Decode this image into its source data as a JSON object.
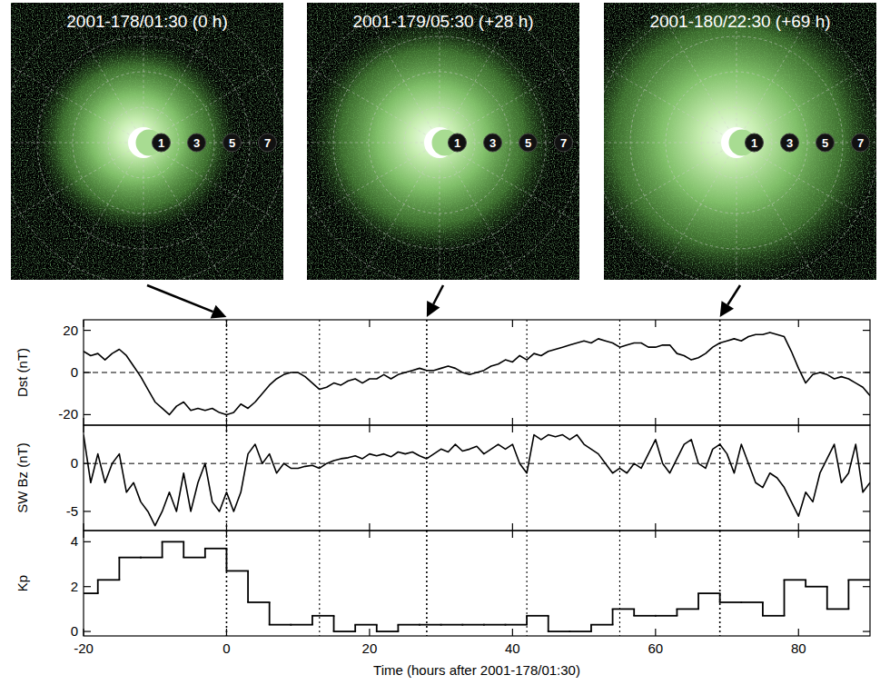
{
  "images": [
    {
      "title": "2001-178/01:30 (0 h)",
      "hours": 0
    },
    {
      "title": "2001-179/05:30 (+28 h)",
      "hours": 28
    },
    {
      "title": "2001-180/22:30 (+69 h)",
      "hours": 69
    }
  ],
  "distance_labels": [
    1,
    3,
    5,
    7
  ],
  "vertical_lines": [
    0,
    13,
    28,
    42,
    55,
    69
  ],
  "chart_data": [
    {
      "type": "line",
      "y_label": "Dst (nT)",
      "x": [
        -20,
        -19,
        -18,
        -17,
        -16,
        -15,
        -14,
        -13,
        -12,
        -11,
        -10,
        -9,
        -8,
        -7,
        -6,
        -5,
        -4,
        -3,
        -2,
        -1,
        0,
        1,
        2,
        3,
        4,
        5,
        6,
        7,
        8,
        9,
        10,
        11,
        12,
        13,
        14,
        15,
        16,
        17,
        18,
        19,
        20,
        21,
        22,
        23,
        24,
        25,
        26,
        27,
        28,
        29,
        30,
        31,
        32,
        33,
        34,
        35,
        36,
        37,
        38,
        39,
        40,
        41,
        42,
        43,
        44,
        45,
        46,
        47,
        48,
        49,
        50,
        51,
        52,
        53,
        54,
        55,
        56,
        57,
        58,
        59,
        60,
        61,
        62,
        63,
        64,
        65,
        66,
        67,
        68,
        69,
        70,
        71,
        72,
        73,
        74,
        75,
        76,
        77,
        78,
        79,
        80,
        81,
        82,
        83,
        84,
        85,
        86,
        87,
        88,
        89,
        90
      ],
      "values": [
        10,
        8,
        9,
        6,
        9,
        11,
        8,
        3,
        -2,
        -8,
        -14,
        -17,
        -20,
        -16,
        -14,
        -18,
        -17,
        -18,
        -17,
        -19,
        -20,
        -19,
        -15,
        -17,
        -14,
        -10,
        -6,
        -3,
        -1,
        0,
        0,
        -2,
        -5,
        -8,
        -7,
        -5,
        -6,
        -4,
        -3,
        -5,
        -3,
        -3,
        -1,
        -3,
        -1,
        0,
        1,
        2,
        1,
        1,
        2,
        3,
        2,
        0,
        -1,
        0,
        1,
        3,
        4,
        6,
        5,
        8,
        6,
        9,
        8,
        10,
        11,
        12,
        13,
        14,
        15,
        14,
        16,
        15,
        14,
        12,
        13,
        14,
        14,
        12,
        12,
        13,
        13,
        9,
        8,
        6,
        7,
        9,
        12,
        14,
        15,
        16,
        15,
        17,
        18,
        18,
        19,
        18,
        17,
        10,
        2,
        -5,
        -1,
        0,
        -1,
        -3,
        -2,
        -3,
        -5,
        -7,
        -11
      ],
      "color": "#000000",
      "xlim": [
        -20,
        90
      ],
      "xticks": [
        -20,
        0,
        20,
        40,
        60,
        80
      ],
      "ylim": [
        -25,
        25
      ],
      "yticks": [
        -20,
        0,
        20
      ],
      "tick_labels": "y"
    },
    {
      "type": "line",
      "y_label": "SW Bz (nT)",
      "x": [
        -20,
        -19,
        -18,
        -17,
        -16,
        -15,
        -14,
        -13,
        -12,
        -11,
        -10,
        -9,
        -8,
        -7,
        -6,
        -5,
        -4,
        -3,
        -2,
        -1,
        0,
        1,
        2,
        3,
        4,
        5,
        6,
        7,
        8,
        9,
        10,
        11,
        12,
        13,
        14,
        15,
        16,
        17,
        18,
        19,
        20,
        21,
        22,
        23,
        24,
        25,
        26,
        27,
        28,
        29,
        30,
        31,
        32,
        33,
        34,
        35,
        36,
        37,
        38,
        39,
        40,
        41,
        42,
        43,
        44,
        45,
        46,
        47,
        48,
        49,
        50,
        51,
        52,
        53,
        54,
        55,
        56,
        57,
        58,
        59,
        60,
        61,
        62,
        63,
        64,
        65,
        66,
        67,
        68,
        69,
        70,
        71,
        72,
        73,
        74,
        75,
        76,
        77,
        78,
        79,
        80,
        81,
        82,
        83,
        84,
        85,
        86,
        87,
        88,
        89,
        90
      ],
      "values": [
        3,
        -2,
        1,
        -2,
        0,
        1,
        -3,
        -2,
        -4,
        -5,
        -6.5,
        -5,
        -3,
        -5,
        -1,
        -5,
        -2,
        0,
        -4,
        -5,
        -3,
        -5,
        -3,
        1,
        2,
        0,
        1,
        -1,
        0,
        -0.5,
        -0.5,
        -0.3,
        -0.2,
        -0.5,
        0,
        0.3,
        0.5,
        0.6,
        0.8,
        0.5,
        1,
        0.8,
        1,
        0.7,
        1.2,
        1,
        1.2,
        0.8,
        0.5,
        1,
        1.5,
        1.2,
        2,
        1.3,
        1.5,
        1.8,
        1,
        1.5,
        2,
        1.5,
        2,
        0,
        -1,
        3,
        2.5,
        3,
        2.8,
        3,
        2.5,
        3,
        2,
        1.5,
        1,
        0,
        -1,
        -0.5,
        -1,
        0,
        -0.5,
        1,
        2.5,
        0,
        -1,
        0.5,
        2,
        2.5,
        0,
        -0.5,
        1.5,
        2,
        1,
        -1,
        2,
        0,
        -2,
        -2.5,
        -1,
        -1.5,
        -2.5,
        -4,
        -5.5,
        -3,
        -4,
        -1,
        0.5,
        2,
        -2,
        -1,
        2,
        -3,
        -2
      ],
      "color": "#000000",
      "xlim": [
        -20,
        90
      ],
      "xticks": [
        -20,
        0,
        20,
        40,
        60,
        80
      ],
      "ylim": [
        -7,
        4
      ],
      "yticks": [
        -5,
        0
      ],
      "tick_labels": "y"
    },
    {
      "type": "step",
      "y_label": "Kp",
      "x_label": "Time (hours after 2001-178/01:30)",
      "bins": [
        -21,
        -18,
        -15,
        -12,
        -9,
        -6,
        -3,
        0,
        3,
        6,
        9,
        12,
        15,
        18,
        21,
        24,
        27,
        30,
        33,
        36,
        39,
        42,
        45,
        48,
        51,
        54,
        57,
        60,
        63,
        66,
        69,
        72,
        75,
        78,
        81,
        84,
        87,
        90
      ],
      "values": [
        1.7,
        2.3,
        3.3,
        3.3,
        4,
        3.3,
        3.7,
        2.7,
        1.3,
        0.3,
        0.3,
        0.7,
        0,
        0.3,
        0,
        0.3,
        0.3,
        0.3,
        0.3,
        0.3,
        0.3,
        0.7,
        0,
        0,
        0.3,
        1,
        0.7,
        0.7,
        1,
        1.7,
        1.3,
        1.3,
        0.7,
        2.3,
        2,
        1,
        2.3
      ],
      "color": "#000000",
      "xlim": [
        -20,
        90
      ],
      "xticks": [
        -20,
        0,
        20,
        40,
        60,
        80
      ],
      "ylim": [
        -0.2,
        4.5
      ],
      "yticks": [
        0,
        2,
        4
      ]
    }
  ]
}
